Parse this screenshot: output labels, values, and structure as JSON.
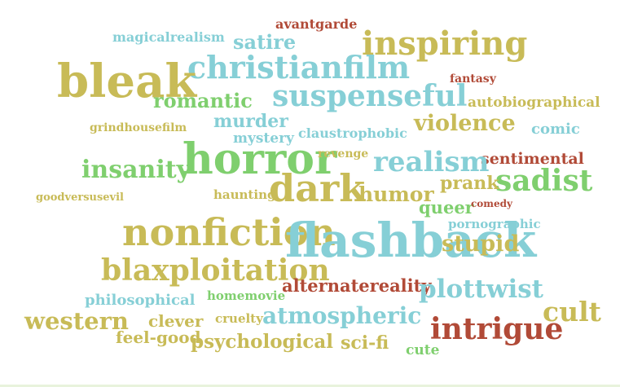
{
  "colors": {
    "olive": "#c8bb57",
    "sky": "#86cfd6",
    "green": "#7fcf6e",
    "brick": "#b14a37"
  },
  "words": [
    {
      "text": "avantgarde",
      "color": "brick"
    },
    {
      "text": "magicalrealism",
      "color": "sky"
    },
    {
      "text": "satire",
      "color": "sky"
    },
    {
      "text": "inspiring",
      "color": "olive"
    },
    {
      "text": "christianfilm",
      "color": "sky"
    },
    {
      "text": "bleak",
      "color": "olive"
    },
    {
      "text": "fantasy",
      "color": "brick"
    },
    {
      "text": "suspenseful",
      "color": "sky"
    },
    {
      "text": "romantic",
      "color": "green"
    },
    {
      "text": "autobiographical",
      "color": "olive"
    },
    {
      "text": "murder",
      "color": "sky"
    },
    {
      "text": "violence",
      "color": "olive"
    },
    {
      "text": "grindhousefilm",
      "color": "olive"
    },
    {
      "text": "comic",
      "color": "sky"
    },
    {
      "text": "mystery",
      "color": "sky"
    },
    {
      "text": "claustrophobic",
      "color": "sky"
    },
    {
      "text": "horror",
      "color": "green"
    },
    {
      "text": "revenge",
      "color": "olive"
    },
    {
      "text": "sentimental",
      "color": "brick"
    },
    {
      "text": "insanity",
      "color": "green"
    },
    {
      "text": "realism",
      "color": "sky"
    },
    {
      "text": "sadist",
      "color": "green"
    },
    {
      "text": "prank",
      "color": "olive"
    },
    {
      "text": "dark",
      "color": "olive"
    },
    {
      "text": "haunting",
      "color": "olive"
    },
    {
      "text": "humor",
      "color": "olive"
    },
    {
      "text": "goodversusevil",
      "color": "olive"
    },
    {
      "text": "queer",
      "color": "green"
    },
    {
      "text": "comedy",
      "color": "brick"
    },
    {
      "text": "nonfiction",
      "color": "olive"
    },
    {
      "text": "pornographic",
      "color": "sky"
    },
    {
      "text": "flashback",
      "color": "sky"
    },
    {
      "text": "stupid",
      "color": "olive"
    },
    {
      "text": "blaxploitation",
      "color": "olive"
    },
    {
      "text": "alternatereality",
      "color": "brick"
    },
    {
      "text": "plottwist",
      "color": "sky"
    },
    {
      "text": "philosophical",
      "color": "sky"
    },
    {
      "text": "homemovie",
      "color": "green"
    },
    {
      "text": "cult",
      "color": "olive"
    },
    {
      "text": "western",
      "color": "olive"
    },
    {
      "text": "clever",
      "color": "olive"
    },
    {
      "text": "cruelty",
      "color": "olive"
    },
    {
      "text": "atmospheric",
      "color": "sky"
    },
    {
      "text": "intrigue",
      "color": "brick"
    },
    {
      "text": "feel-good",
      "color": "olive"
    },
    {
      "text": "psychological",
      "color": "olive"
    },
    {
      "text": "sci-fi",
      "color": "olive"
    },
    {
      "text": "cute",
      "color": "green"
    }
  ]
}
